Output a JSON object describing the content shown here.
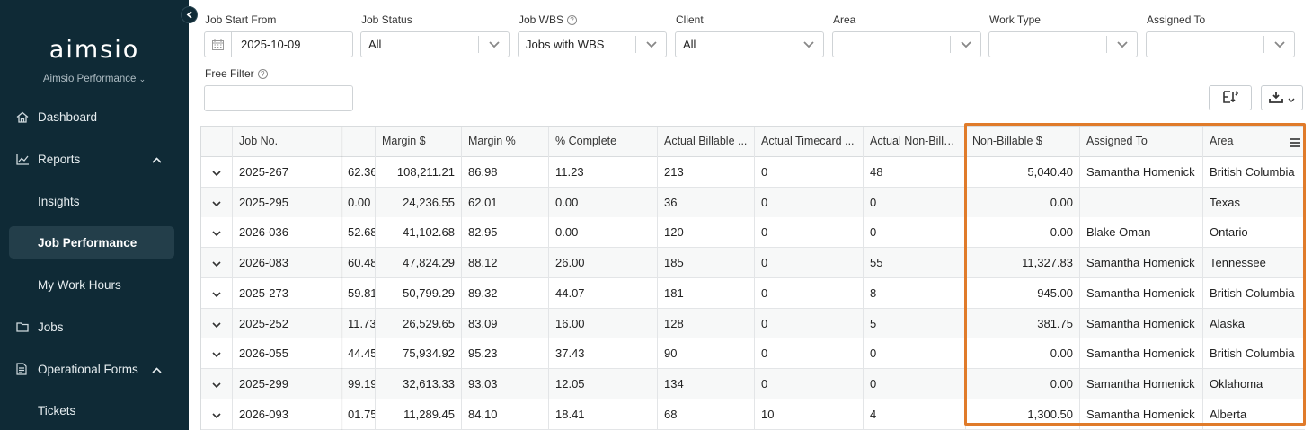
{
  "sidebar": {
    "logo": "aimsio",
    "org": "Aimsio Performance",
    "items": [
      {
        "label": "Dashboard"
      },
      {
        "label": "Reports"
      },
      {
        "label": "Insights"
      },
      {
        "label": "Job Performance"
      },
      {
        "label": "My Work Hours"
      },
      {
        "label": "Jobs"
      },
      {
        "label": "Operational Forms"
      },
      {
        "label": "Tickets"
      }
    ]
  },
  "filters": {
    "job_start_from": {
      "label": "Job Start From",
      "value": "2025-10-09"
    },
    "job_status": {
      "label": "Job Status",
      "value": "All"
    },
    "job_wbs": {
      "label": "Job WBS",
      "value": "Jobs with WBS"
    },
    "client": {
      "label": "Client",
      "value": "All"
    },
    "area": {
      "label": "Area",
      "value": ""
    },
    "work_type": {
      "label": "Work Type",
      "value": ""
    },
    "assigned_to": {
      "label": "Assigned To",
      "value": ""
    },
    "free_filter": {
      "label": "Free Filter",
      "value": ""
    }
  },
  "table": {
    "columns": [
      "",
      "Job No.",
      "",
      "Margin $",
      "Margin %",
      "% Complete",
      "Actual Billable ...",
      "Actual Timecard ...",
      "Actual Non-Billa...",
      "Non-Billable $",
      "Assigned To",
      "Area"
    ],
    "rows": [
      {
        "job": "2025-267",
        "prev": "62.36",
        "margin": "108,211.21",
        "margin_pct": "86.98",
        "complete": "11.23",
        "billable": "213",
        "timecard": "0",
        "nonbill": "48",
        "nonbill_amt": "5,040.40",
        "assigned": "Samantha Homenick",
        "area": "British Columbia"
      },
      {
        "job": "2025-295",
        "prev": "0.00",
        "margin": "24,236.55",
        "margin_pct": "62.01",
        "complete": "0.00",
        "billable": "36",
        "timecard": "0",
        "nonbill": "0",
        "nonbill_amt": "0.00",
        "assigned": "",
        "area": "Texas"
      },
      {
        "job": "2026-036",
        "prev": "52.68",
        "margin": "41,102.68",
        "margin_pct": "82.95",
        "complete": "0.00",
        "billable": "120",
        "timecard": "0",
        "nonbill": "0",
        "nonbill_amt": "0.00",
        "assigned": "Blake Oman",
        "area": "Ontario"
      },
      {
        "job": "2026-083",
        "prev": "60.48",
        "margin": "47,824.29",
        "margin_pct": "88.12",
        "complete": "26.00",
        "billable": "185",
        "timecard": "0",
        "nonbill": "55",
        "nonbill_amt": "11,327.83",
        "assigned": "Samantha Homenick",
        "area": "Tennessee"
      },
      {
        "job": "2025-273",
        "prev": "59.81",
        "margin": "50,799.29",
        "margin_pct": "89.32",
        "complete": "44.07",
        "billable": "181",
        "timecard": "0",
        "nonbill": "8",
        "nonbill_amt": "945.00",
        "assigned": "Samantha Homenick",
        "area": "British Columbia"
      },
      {
        "job": "2025-252",
        "prev": "11.73",
        "margin": "26,529.65",
        "margin_pct": "83.09",
        "complete": "16.00",
        "billable": "128",
        "timecard": "0",
        "nonbill": "5",
        "nonbill_amt": "381.75",
        "assigned": "Samantha Homenick",
        "area": "Alaska"
      },
      {
        "job": "2026-055",
        "prev": "44.45",
        "margin": "75,934.92",
        "margin_pct": "95.23",
        "complete": "37.43",
        "billable": "90",
        "timecard": "0",
        "nonbill": "0",
        "nonbill_amt": "0.00",
        "assigned": "Samantha Homenick",
        "area": "British Columbia"
      },
      {
        "job": "2025-299",
        "prev": "99.19",
        "margin": "32,613.33",
        "margin_pct": "93.03",
        "complete": "12.05",
        "billable": "134",
        "timecard": "0",
        "nonbill": "0",
        "nonbill_amt": "0.00",
        "assigned": "Samantha Homenick",
        "area": "Oklahoma"
      },
      {
        "job": "2026-093",
        "prev": "01.75",
        "margin": "11,289.45",
        "margin_pct": "84.10",
        "complete": "18.41",
        "billable": "68",
        "timecard": "10",
        "nonbill": "4",
        "nonbill_amt": "1,300.50",
        "assigned": "Samantha Homenick",
        "area": "Alberta"
      }
    ]
  },
  "colors": {
    "sidebar": "#0f2a36",
    "active_item": "#233e4a",
    "highlight": "#e07b2a"
  }
}
